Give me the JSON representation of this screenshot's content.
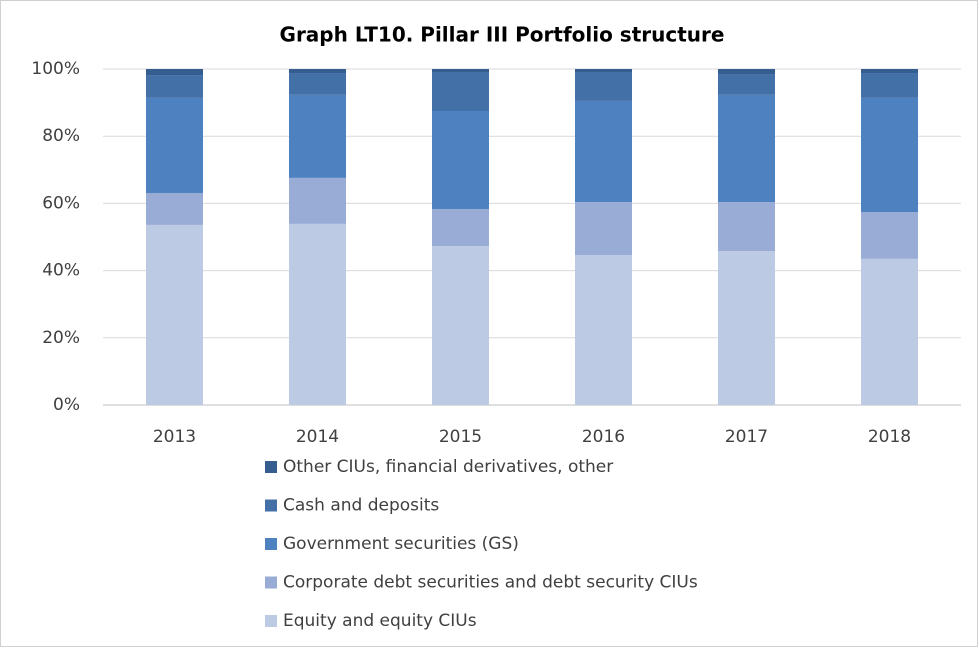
{
  "chart_data": {
    "type": "stacked_bar",
    "title": "Graph LT10. Pillar III Portfolio structure",
    "categories": [
      "2013",
      "2014",
      "2015",
      "2016",
      "2017",
      "2018"
    ],
    "series": [
      {
        "name": "Equity and equity CIUs",
        "color": "#bccae3",
        "values": [
          53.6,
          53.9,
          47.3,
          44.6,
          45.8,
          43.5
        ]
      },
      {
        "name": "Corporate debt securities and debt security CIUs",
        "color": "#98acd6",
        "values": [
          9.5,
          13.7,
          11.0,
          15.8,
          14.6,
          13.9
        ]
      },
      {
        "name": "Government securities (GS)",
        "color": "#4e81c0",
        "values": [
          28.3,
          24.7,
          29.2,
          30.1,
          31.9,
          34.0
        ]
      },
      {
        "name": "Cash and deposits",
        "color": "#4470a8",
        "values": [
          6.8,
          6.5,
          11.6,
          8.6,
          6.2,
          7.4
        ]
      },
      {
        "name": "Other CIUs, financial derivatives, other",
        "color": "#365d8f",
        "values": [
          1.8,
          1.2,
          0.9,
          0.9,
          1.5,
          1.2
        ]
      }
    ],
    "ylim": [
      0,
      100
    ],
    "yticks": [
      {
        "value": 0,
        "label": "0%"
      },
      {
        "value": 20,
        "label": "20%"
      },
      {
        "value": 40,
        "label": "40%"
      },
      {
        "value": 60,
        "label": "60%"
      },
      {
        "value": 80,
        "label": "80%"
      },
      {
        "value": 100,
        "label": "100%"
      }
    ],
    "grid": true,
    "legend": "bottom"
  }
}
